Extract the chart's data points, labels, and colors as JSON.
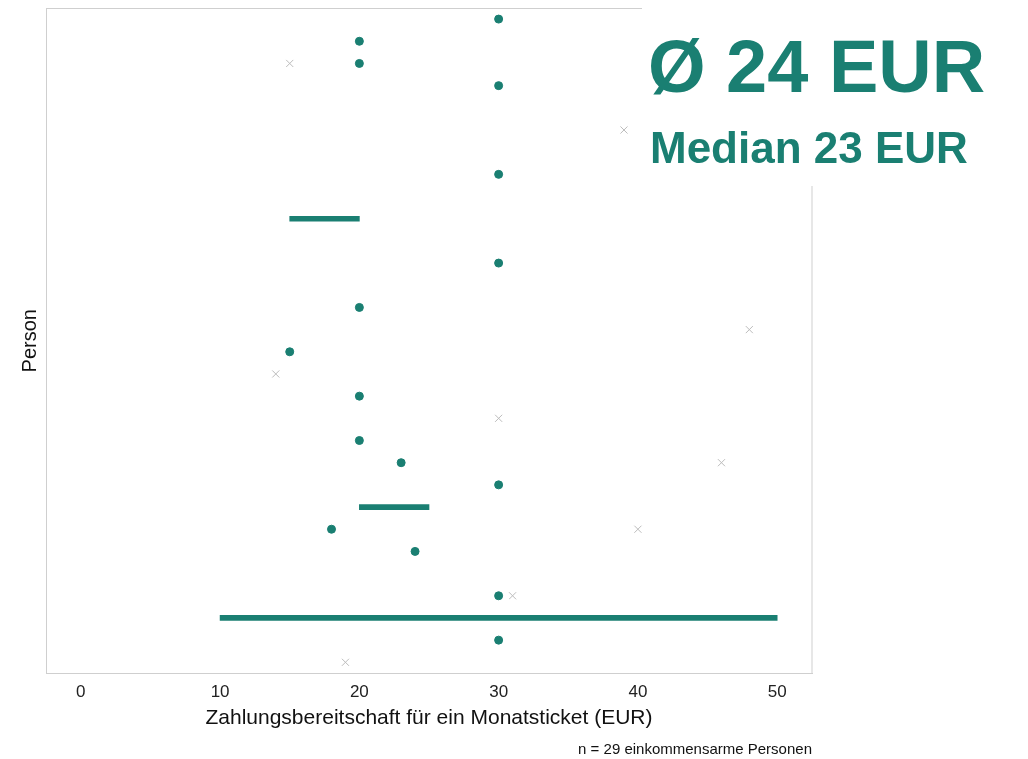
{
  "chart_data": {
    "type": "scatter",
    "orientation": "horizontal",
    "categories": [
      null,
      null,
      null,
      null,
      null,
      null,
      null,
      null,
      null,
      null,
      null,
      null,
      null,
      null,
      null,
      null,
      null,
      null,
      null,
      null,
      null,
      null,
      null,
      null,
      null,
      null,
      null,
      null,
      null,
      null
    ],
    "xlabel": "Zahlungsbereitschaft für ein Monatsticket (EUR)",
    "ylabel": "Person",
    "xlim": [
      -2.5,
      52.5
    ],
    "xticks": [
      0,
      10,
      20,
      30,
      40,
      50
    ],
    "tick_labels": "x",
    "grid": false,
    "legend": false,
    "annotations": [
      "Ø 24 EUR",
      "Median 23 EUR",
      "n = 29 einkommensarme Personen"
    ],
    "series": [
      {
        "type": "bar",
        "color": "#1a7f72",
        "base": [
          null,
          null,
          null,
          null,
          null,
          null,
          null,
          null,
          null,
          15,
          null,
          null,
          null,
          null,
          null,
          null,
          null,
          null,
          null,
          null,
          null,
          null,
          20,
          null,
          null,
          null,
          null,
          10,
          null,
          null
        ],
        "values": [
          null,
          null,
          null,
          null,
          null,
          null,
          null,
          null,
          null,
          5,
          null,
          null,
          null,
          null,
          null,
          null,
          null,
          null,
          null,
          null,
          null,
          null,
          5,
          null,
          null,
          null,
          null,
          40,
          null,
          null
        ]
      },
      {
        "marker": "circle",
        "color": "#1a7f72",
        "values": [
          30,
          20,
          20,
          30,
          null,
          null,
          null,
          30,
          null,
          null,
          null,
          30,
          null,
          20,
          null,
          15,
          null,
          20,
          null,
          20,
          23,
          30,
          null,
          18,
          24,
          null,
          30,
          null,
          30,
          null
        ]
      },
      {
        "marker": "cross",
        "color": "#bdbdbd",
        "values": [
          null,
          null,
          15,
          null,
          null,
          39,
          null,
          null,
          null,
          null,
          null,
          null,
          null,
          null,
          48,
          null,
          14,
          null,
          30,
          null,
          46,
          null,
          null,
          40,
          null,
          null,
          31,
          null,
          null,
          19
        ]
      }
    ]
  }
}
